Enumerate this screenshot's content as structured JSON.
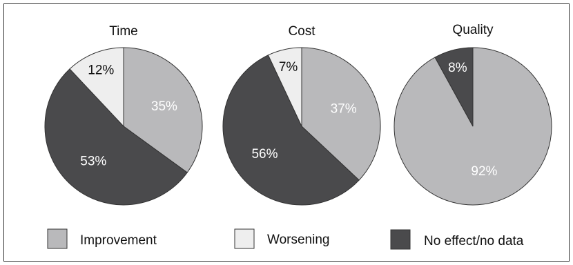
{
  "chart_data": [
    {
      "type": "pie",
      "title": "Time",
      "slices": [
        {
          "category": "Improvement",
          "value": 35,
          "label": "35%"
        },
        {
          "category": "No effect/no data",
          "value": 53,
          "label": "53%"
        },
        {
          "category": "Worsening",
          "value": 12,
          "label": "12%"
        }
      ]
    },
    {
      "type": "pie",
      "title": "Cost",
      "slices": [
        {
          "category": "Improvement",
          "value": 37,
          "label": "37%"
        },
        {
          "category": "No effect/no data",
          "value": 56,
          "label": "56%"
        },
        {
          "category": "Worsening",
          "value": 7,
          "label": "7%"
        }
      ]
    },
    {
      "type": "pie",
      "title": "Quality",
      "slices": [
        {
          "category": "Improvement",
          "value": 92,
          "label": "92%"
        },
        {
          "category": "No effect/no data",
          "value": 8,
          "label": "8%"
        }
      ]
    }
  ],
  "legend": [
    {
      "category": "Improvement",
      "label": "Improvement",
      "color": "#b9b9bb"
    },
    {
      "category": "Worsening",
      "label": "Worsening",
      "color": "#eeeeee"
    },
    {
      "category": "No effect/no data",
      "label": "No effect/no data",
      "color": "#4a4a4c"
    }
  ],
  "colors": {
    "Improvement": "#b9b9bb",
    "Worsening": "#eeeeee",
    "No effect/no data": "#4a4a4c",
    "outline": "#333333",
    "label_on_dark": "#ffffff",
    "label_on_light": "#111111"
  }
}
